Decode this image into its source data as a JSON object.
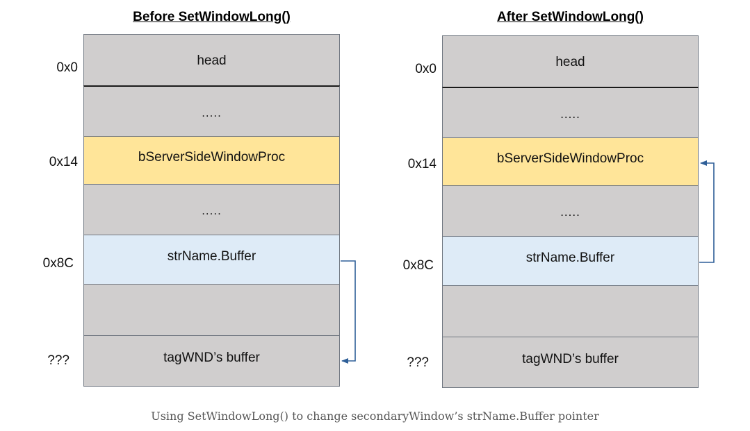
{
  "diagram": {
    "caption": "Using SetWindowLong() to change secondaryWindow’s strName.Buffer pointer",
    "colors": {
      "gray": "#d0cece",
      "yellow": "#ffe599",
      "blue": "#deebf7",
      "arrow": "#2f5f98"
    },
    "panels": [
      {
        "title": "Before SetWindowLong()",
        "cells": [
          {
            "label": "head",
            "color": "gray",
            "address": "0x0"
          },
          {
            "label": ".....",
            "color": "gray",
            "address": ""
          },
          {
            "label": "bServerSideWindowProc",
            "color": "yellow",
            "address": "0x14"
          },
          {
            "label": ".....",
            "color": "gray",
            "address": ""
          },
          {
            "label": "strName.Buffer",
            "color": "blue",
            "address": "0x8C"
          },
          {
            "label": "",
            "color": "gray",
            "address": ""
          },
          {
            "label": "tagWND’s buffer",
            "color": "gray",
            "address": "???"
          }
        ],
        "arrow": "strName.Buffer → tagWND’s buffer"
      },
      {
        "title": "After SetWindowLong()",
        "cells": [
          {
            "label": "head",
            "color": "gray",
            "address": "0x0"
          },
          {
            "label": ".....",
            "color": "gray",
            "address": ""
          },
          {
            "label": "bServerSideWindowProc",
            "color": "yellow",
            "address": "0x14"
          },
          {
            "label": ".....",
            "color": "gray",
            "address": ""
          },
          {
            "label": "strName.Buffer",
            "color": "blue",
            "address": "0x8C"
          },
          {
            "label": "",
            "color": "gray",
            "address": ""
          },
          {
            "label": "tagWND’s buffer",
            "color": "gray",
            "address": "???"
          }
        ],
        "arrow": "strName.Buffer → bServerSideWindowProc"
      }
    ]
  }
}
